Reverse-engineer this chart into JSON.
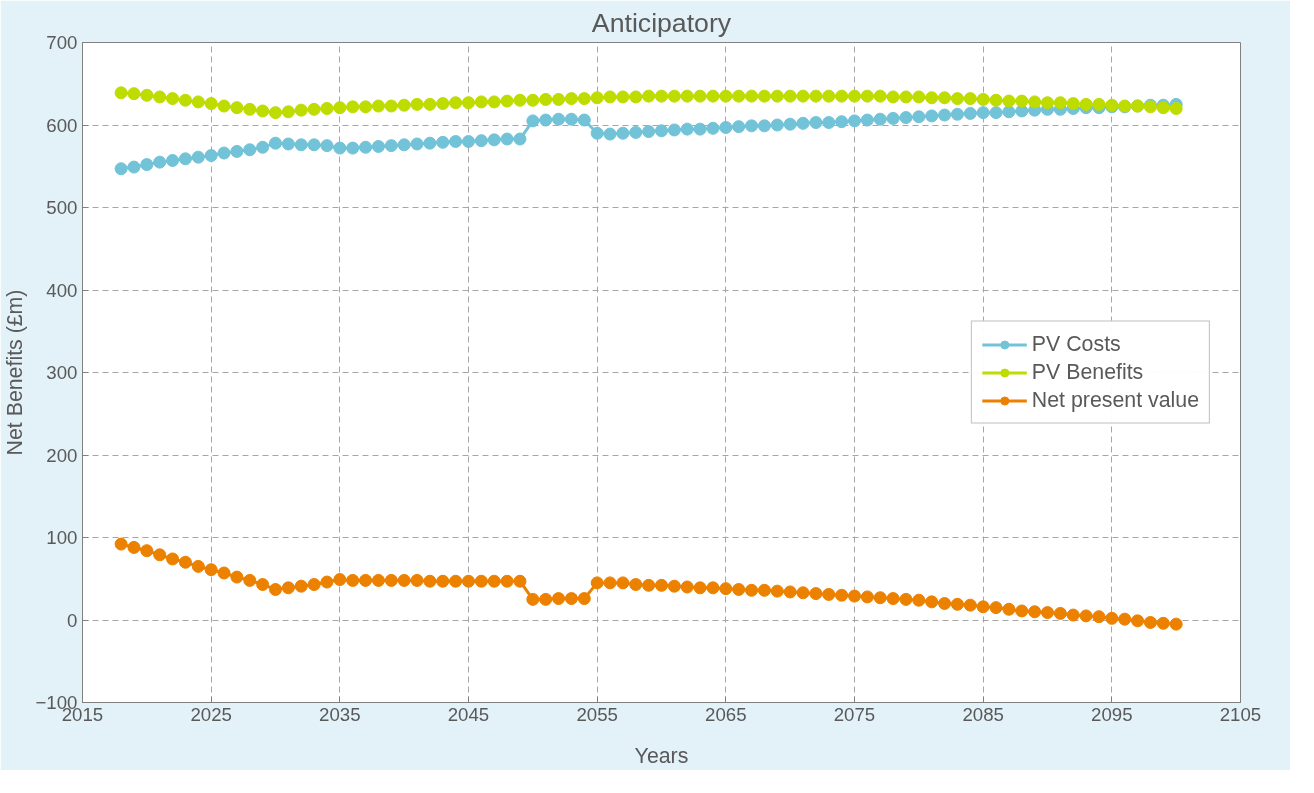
{
  "chart_data": {
    "type": "line",
    "title": "Anticipatory",
    "xlabel": "Years",
    "ylabel": "Net Benefits (£m)",
    "x": [
      2018,
      2019,
      2020,
      2021,
      2022,
      2023,
      2024,
      2025,
      2026,
      2027,
      2028,
      2029,
      2030,
      2031,
      2032,
      2033,
      2034,
      2035,
      2036,
      2037,
      2038,
      2039,
      2040,
      2041,
      2042,
      2043,
      2044,
      2045,
      2046,
      2047,
      2048,
      2049,
      2050,
      2051,
      2052,
      2053,
      2054,
      2055,
      2056,
      2057,
      2058,
      2059,
      2060,
      2061,
      2062,
      2063,
      2064,
      2065,
      2066,
      2067,
      2068,
      2069,
      2070,
      2071,
      2072,
      2073,
      2074,
      2075,
      2076,
      2077,
      2078,
      2079,
      2080,
      2081,
      2082,
      2083,
      2084,
      2085,
      2086,
      2087,
      2088,
      2089,
      2090,
      2091,
      2092,
      2093,
      2094,
      2095,
      2096,
      2097,
      2098,
      2099,
      2100
    ],
    "series": [
      {
        "name": "PV Costs",
        "color": "#72c3d8",
        "values": [
          547,
          549,
          552,
          555,
          557,
          559,
          561,
          563,
          566,
          568,
          570,
          573,
          578,
          577,
          576,
          576,
          575,
          572,
          572,
          573,
          574,
          575,
          576,
          577,
          578,
          579,
          580,
          580,
          581,
          582,
          583,
          583,
          605,
          606,
          607,
          607,
          606,
          590,
          589,
          590,
          591,
          592,
          593,
          594,
          595,
          595,
          596,
          597,
          598,
          599,
          599,
          600,
          601,
          602,
          603,
          603,
          604,
          605,
          606,
          607,
          608,
          609,
          610,
          611,
          612,
          613,
          614,
          615,
          615,
          616,
          617,
          618,
          619,
          619,
          620,
          621,
          621,
          622,
          622,
          623,
          624,
          624,
          625
        ]
      },
      {
        "name": "PV Benefits",
        "color": "#bedc00",
        "values": [
          639,
          638,
          636,
          634,
          632,
          630,
          628,
          626,
          623,
          621,
          619,
          617,
          615,
          616,
          618,
          619,
          620,
          621,
          622,
          622,
          623,
          623,
          624,
          625,
          625,
          626,
          627,
          627,
          628,
          628,
          629,
          630,
          630,
          631,
          631,
          632,
          632,
          633,
          634,
          634,
          634,
          635,
          635,
          635,
          635,
          635,
          635,
          635,
          635,
          635,
          635,
          635,
          635,
          635,
          635,
          635,
          635,
          635,
          635,
          635,
          634,
          634,
          634,
          633,
          633,
          632,
          632,
          631,
          630,
          629,
          629,
          628,
          627,
          627,
          626,
          625,
          625,
          624,
          623,
          623,
          622,
          621,
          620
        ]
      },
      {
        "name": "Net present value",
        "color": "#ec8100",
        "values": [
          92,
          88,
          84,
          79,
          74,
          70,
          65,
          61,
          57,
          52,
          48,
          43,
          37,
          39,
          41,
          43,
          46,
          49,
          48,
          48,
          48,
          48,
          48,
          48,
          47,
          47,
          47,
          47,
          47,
          47,
          47,
          47,
          25,
          25,
          26,
          26,
          26,
          45,
          45,
          45,
          43,
          42,
          42,
          41,
          40,
          39,
          39,
          38,
          37,
          36,
          36,
          35,
          34,
          33,
          32,
          31,
          30,
          29,
          28,
          27,
          26,
          25,
          24,
          22,
          20,
          19,
          18,
          16,
          15,
          13,
          11,
          10,
          9,
          8,
          6,
          5,
          4,
          2,
          1,
          -1,
          -3,
          -4,
          -5
        ]
      }
    ],
    "xlim": [
      2015,
      2105
    ],
    "xticks": [
      2015,
      2025,
      2035,
      2045,
      2055,
      2065,
      2075,
      2085,
      2095,
      2105
    ],
    "ylim": [
      -100,
      700
    ],
    "yticks": [
      -100,
      0,
      100,
      200,
      300,
      400,
      500,
      600,
      700
    ],
    "grid": true,
    "legend": "right",
    "marker": "circle",
    "line_style": "solid"
  }
}
